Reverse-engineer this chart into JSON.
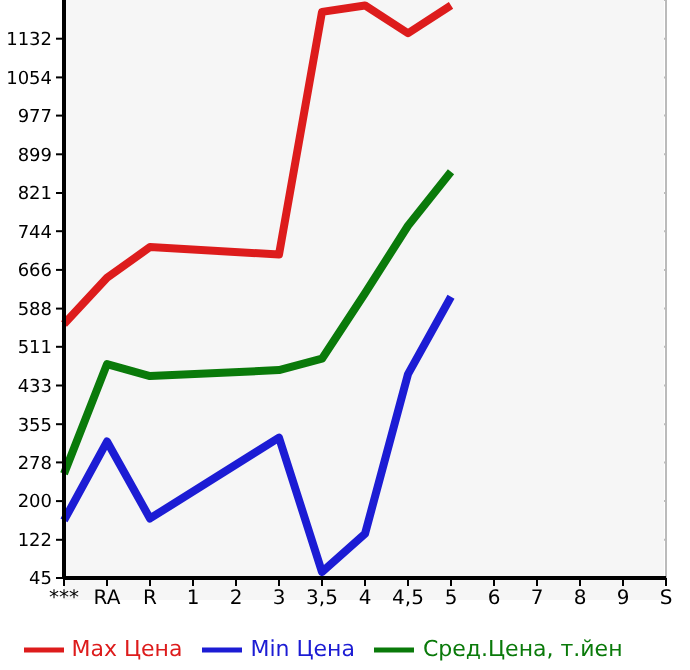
{
  "chart_data": {
    "type": "line",
    "categories": [
      "***",
      "RA",
      "R",
      "1",
      "2",
      "3",
      "3,5",
      "4",
      "4,5",
      "5",
      "6",
      "7",
      "8",
      "9",
      "S"
    ],
    "series": [
      {
        "name": "Max Цена",
        "color": "#dd1c1c",
        "values": [
          557,
          650,
          712,
          null,
          null,
          697,
          1186,
          1199,
          1143,
          1199,
          null,
          null,
          null,
          null,
          null
        ]
      },
      {
        "name": "Min Цена",
        "color": "#1c1cd4",
        "values": [
          161,
          320,
          165,
          null,
          null,
          328,
          57,
          134,
          456,
          612,
          null,
          null,
          null,
          null,
          null
        ]
      },
      {
        "name": "Сред.Цена, т.йен",
        "color": "#0a7a0a",
        "values": [
          255,
          476,
          452,
          null,
          null,
          464,
          487,
          619,
          755,
          864,
          null,
          null,
          null,
          null,
          null
        ]
      }
    ],
    "ylim": [
      45,
      1210
    ],
    "yticks": [
      45,
      122,
      200,
      278,
      355,
      433,
      511,
      588,
      666,
      744,
      821,
      899,
      977,
      1054,
      1132
    ],
    "grid": true,
    "legend": "bottom",
    "marker": "none",
    "line_style": "solid"
  }
}
